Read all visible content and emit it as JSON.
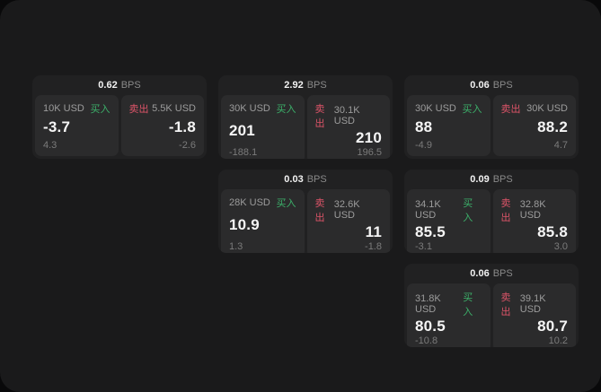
{
  "labels": {
    "bps": "BPS",
    "buy": "买入",
    "sell": "卖出"
  },
  "colors": {
    "outer_bg": "#09090a",
    "surface_bg": "#1a1a1b",
    "card_bg": "#212122",
    "panel_bg": "#2b2b2c",
    "buy_green": "#3cb06a",
    "sell_red": "#dc5468",
    "primary_text": "#f5f5f5",
    "muted_text": "#8a8a8a"
  },
  "cards": [
    {
      "col": 1,
      "row": 1,
      "bps": "0.62",
      "buy": {
        "amount": "10K USD",
        "value": "-3.7",
        "sub": "4.3"
      },
      "sell": {
        "amount": "5.5K USD",
        "value": "-1.8",
        "sub": "-2.6"
      }
    },
    {
      "col": 2,
      "row": 1,
      "bps": "2.92",
      "buy": {
        "amount": "30K USD",
        "value": "201",
        "sub": "-188.1"
      },
      "sell": {
        "amount": "30.1K USD",
        "value": "210",
        "sub": "196.5"
      }
    },
    {
      "col": 3,
      "row": 1,
      "bps": "0.06",
      "buy": {
        "amount": "30K USD",
        "value": "88",
        "sub": "-4.9"
      },
      "sell": {
        "amount": "30K USD",
        "value": "88.2",
        "sub": "4.7"
      }
    },
    {
      "col": 2,
      "row": 2,
      "bps": "0.03",
      "buy": {
        "amount": "28K USD",
        "value": "10.9",
        "sub": "1.3"
      },
      "sell": {
        "amount": "32.6K USD",
        "value": "11",
        "sub": "-1.8"
      }
    },
    {
      "col": 3,
      "row": 2,
      "bps": "0.09",
      "buy": {
        "amount": "34.1K USD",
        "value": "85.5",
        "sub": "-3.1"
      },
      "sell": {
        "amount": "32.8K USD",
        "value": "85.8",
        "sub": "3.0"
      }
    },
    {
      "col": 3,
      "row": 3,
      "bps": "0.06",
      "buy": {
        "amount": "31.8K USD",
        "value": "80.5",
        "sub": "-10.8"
      },
      "sell": {
        "amount": "39.1K USD",
        "value": "80.7",
        "sub": "10.2"
      }
    }
  ]
}
